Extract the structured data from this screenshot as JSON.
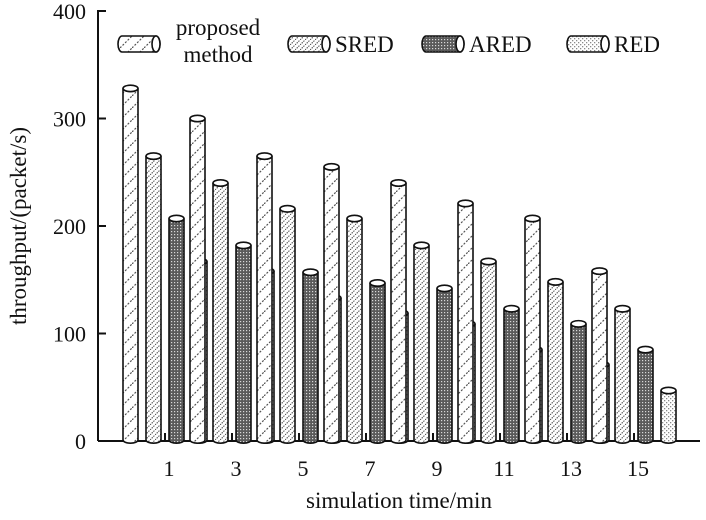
{
  "chart_data": {
    "type": "bar",
    "style": "3d-cylinder",
    "xlabel": "simulation time/min",
    "ylabel": "throughput/(packet/s)",
    "categories": [
      "1",
      "3",
      "5",
      "7",
      "9",
      "11",
      "13",
      "15"
    ],
    "ylim": [
      0,
      400
    ],
    "yticks": [
      "0",
      "100",
      "200",
      "300",
      "400"
    ],
    "grid": false,
    "legend_position": "top",
    "series": [
      {
        "name": "proposed method",
        "legend_lines": [
          "proposed",
          "method"
        ],
        "pattern": "sparse-diagonal",
        "values": [
          328,
          300,
          265,
          255,
          240,
          221,
          207,
          158
        ]
      },
      {
        "name": "SRED",
        "pattern": "dense-diagonal",
        "values": [
          265,
          240,
          216,
          207,
          182,
          167,
          148,
          123
        ]
      },
      {
        "name": "ARED",
        "pattern": "dark-grid",
        "values": [
          207,
          182,
          157,
          147,
          142,
          123,
          109,
          85
        ]
      },
      {
        "name": "RED",
        "pattern": "light-grid",
        "values": [
          167,
          158,
          133,
          119,
          109,
          85,
          71,
          47
        ]
      }
    ]
  }
}
